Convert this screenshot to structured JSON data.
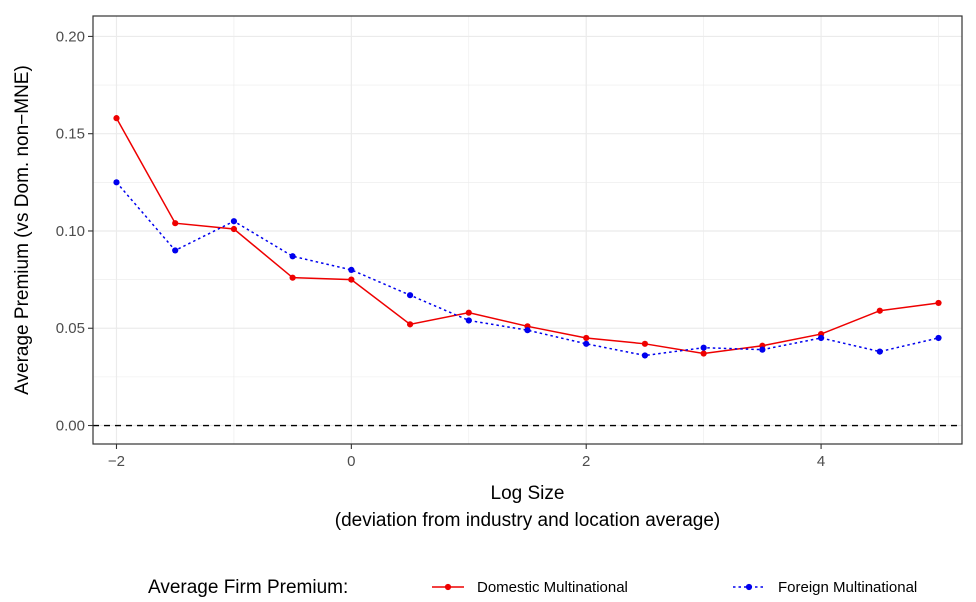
{
  "chart_data": {
    "type": "line",
    "xlabel_line1": "Log Size",
    "xlabel_line2": "(deviation from industry and location average)",
    "ylabel": "Average Premium (vs Dom. non−MNE)",
    "xlim": [
      -2.2,
      5.2
    ],
    "ylim": [
      -0.0095,
      0.2105
    ],
    "x_ticks": [
      -2,
      0,
      2,
      4
    ],
    "x_tick_labels": [
      "−2",
      "0",
      "2",
      "4"
    ],
    "y_ticks": [
      0.0,
      0.05,
      0.1,
      0.15,
      0.2
    ],
    "y_tick_labels": [
      "0.00",
      "0.05",
      "0.10",
      "0.15",
      "0.20"
    ],
    "grid": true,
    "reference_line": {
      "y": 0,
      "style": "dashed",
      "color": "#000000"
    },
    "x": [
      -2,
      -1.5,
      -1,
      -0.5,
      0,
      0.5,
      1,
      1.5,
      2,
      2.5,
      3,
      3.5,
      4,
      4.5,
      5
    ],
    "series": [
      {
        "name": "Domestic Multinational",
        "color": "#ee0000",
        "line_style": "solid",
        "values": [
          0.158,
          0.104,
          0.101,
          0.076,
          0.075,
          0.052,
          0.058,
          0.051,
          0.045,
          0.042,
          0.037,
          0.041,
          0.047,
          0.059,
          0.063
        ]
      },
      {
        "name": "Foreign Multinational",
        "color": "#0000ee",
        "line_style": "dotted",
        "values": [
          0.125,
          0.09,
          0.105,
          0.087,
          0.08,
          0.067,
          0.054,
          0.049,
          0.042,
          0.036,
          0.04,
          0.039,
          0.045,
          0.038,
          0.045
        ]
      }
    ],
    "legend": {
      "title": "Average Firm Premium:",
      "position": "bottom"
    }
  }
}
